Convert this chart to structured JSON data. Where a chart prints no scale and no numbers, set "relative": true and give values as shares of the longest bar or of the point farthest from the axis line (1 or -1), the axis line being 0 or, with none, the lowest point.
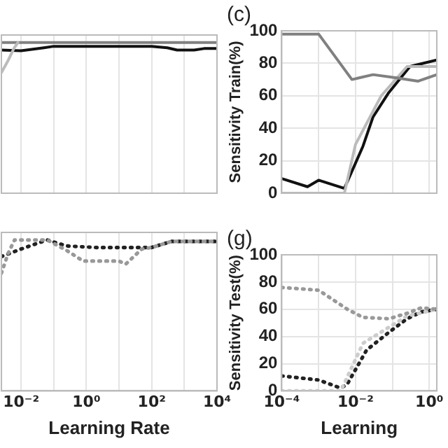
{
  "chart_data": [
    {
      "type": "line",
      "relative": true,
      "log": "x",
      "xlim": [
        0.0025,
        10000
      ],
      "xticks": [
        {
          "value": 0.01,
          "label": null
        },
        {
          "value": 0.1,
          "label": null
        },
        {
          "value": 1,
          "label": null
        },
        {
          "value": 10,
          "label": null
        },
        {
          "value": 100,
          "label": null
        },
        {
          "value": 1000,
          "label": null
        },
        {
          "value": 10000,
          "label": null
        }
      ],
      "tick_labels": false,
      "grid": true,
      "legend": false,
      "marker": "none",
      "line_style": "solid",
      "series": [
        {
          "color": "#bbbbbb",
          "x": [
            0.0025,
            0.004,
            0.006,
            0.008
          ],
          "values": [
            0.8,
            0.88,
            0.96,
            1
          ]
        },
        {
          "color": "#808080",
          "x": [
            0.0025,
            0.01,
            0.1,
            1,
            10000
          ],
          "values": [
            1,
            1,
            1,
            1,
            1
          ]
        },
        {
          "color": "#111111",
          "x": [
            0.0025,
            0.01,
            0.05,
            0.1,
            1,
            100,
            300,
            600,
            2000,
            4000,
            10000
          ],
          "values": [
            0.95,
            0.945,
            0.965,
            0.975,
            0.975,
            0.975,
            0.965,
            0.95,
            0.95,
            0.96,
            0.96
          ]
        }
      ]
    },
    {
      "type": "line",
      "title": "(c)",
      "ylabel": "Sensitivity Train(%)",
      "log": "x",
      "xlim": [
        0.0001,
        1.6
      ],
      "xticks": [
        {
          "value": 0.0001,
          "label": null
        },
        {
          "value": 0.001,
          "label": null
        },
        {
          "value": 0.01,
          "label": null
        },
        {
          "value": 0.1,
          "label": null
        },
        {
          "value": 1,
          "label": null
        }
      ],
      "ylim": [
        0,
        100
      ],
      "yticks": [
        0,
        20,
        40,
        60,
        80,
        100
      ],
      "tick_labels": "y",
      "grid": true,
      "legend": false,
      "marker": "none",
      "line_style": "solid",
      "series": [
        {
          "color": "#808080",
          "x": [
            0.0001,
            0.001,
            0.008,
            0.03,
            0.13,
            0.5,
            1.6
          ],
          "values": [
            98,
            98,
            70,
            73,
            71,
            69,
            73
          ]
        },
        {
          "color": "#bbbbbb",
          "x": [
            0.0001,
            0.005,
            0.01,
            0.05,
            0.25,
            1.6
          ],
          "values": [
            0,
            0,
            30,
            60,
            78,
            78
          ]
        },
        {
          "color": "#111111",
          "x": [
            0.0001,
            0.0005,
            0.001,
            0.005,
            0.016,
            0.03,
            0.08,
            0.3,
            1.6
          ],
          "values": [
            9,
            4,
            8,
            3,
            29,
            47,
            62,
            78,
            82
          ]
        }
      ]
    },
    {
      "type": "line",
      "relative": true,
      "xlabel": "Learning Rate",
      "log": "x",
      "xlim": [
        0.0025,
        10000
      ],
      "xticks": [
        {
          "value": 0.01,
          "label": "10⁻²"
        },
        {
          "value": 0.1,
          "label": null
        },
        {
          "value": 1,
          "label": "10⁰"
        },
        {
          "value": 10,
          "label": null
        },
        {
          "value": 100,
          "label": "10²"
        },
        {
          "value": 1000,
          "label": null
        },
        {
          "value": 10000,
          "label": "10⁴"
        }
      ],
      "tick_labels": "x",
      "grid": true,
      "legend": false,
      "marker": "none",
      "line_style": "dotted",
      "series": [
        {
          "color": "#999999",
          "x": [
            0.0025,
            0.004,
            0.0063,
            0.063,
            0.25,
            0.8,
            10,
            16,
            50,
            100,
            400,
            10000
          ],
          "values": [
            0.78,
            0.91,
            1,
            1,
            0.93,
            0.86,
            0.86,
            0.84,
            0.94,
            0.95,
            0.99,
            0.99
          ]
        },
        {
          "color": "#222222",
          "x": [
            0.0025,
            0.01,
            0.063,
            0.25,
            2,
            25,
            100,
            400,
            10000
          ],
          "values": [
            0.89,
            0.94,
            1,
            0.96,
            0.95,
            0.95,
            0.95,
            0.99,
            0.99
          ]
        }
      ]
    },
    {
      "type": "line",
      "title": "(g)",
      "ylabel": "Sensitivity Test(%)",
      "xlabel": "Learning",
      "log": "x",
      "xlim": [
        0.0001,
        1.6
      ],
      "xticks": [
        {
          "value": 0.0001,
          "label": "10⁻⁴"
        },
        {
          "value": 0.001,
          "label": null
        },
        {
          "value": 0.01,
          "label": "10⁻²"
        },
        {
          "value": 0.1,
          "label": null
        },
        {
          "value": 1,
          "label": "10⁰"
        }
      ],
      "ylim": [
        0,
        100
      ],
      "yticks": [
        0,
        20,
        40,
        60,
        80,
        100
      ],
      "grid": true,
      "legend": false,
      "marker": "none",
      "line_style": "dotted",
      "series": [
        {
          "color": "#999999",
          "x": [
            0.0001,
            0.001,
            0.006,
            0.016,
            0.08,
            0.25,
            0.6,
            1.6
          ],
          "values": [
            76,
            74,
            60,
            54,
            53,
            57,
            61,
            60
          ]
        },
        {
          "color": "#cccccc",
          "x": [
            0.0001,
            0.004,
            0.016,
            0.25,
            1.6
          ],
          "values": [
            0,
            0,
            35,
            55,
            60
          ]
        },
        {
          "color": "#222222",
          "x": [
            0.0001,
            0.001,
            0.004,
            0.006,
            0.02,
            0.08,
            0.25,
            0.6,
            1.6
          ],
          "values": [
            11,
            8,
            2,
            5,
            30,
            43,
            53,
            58,
            60
          ]
        }
      ]
    }
  ]
}
